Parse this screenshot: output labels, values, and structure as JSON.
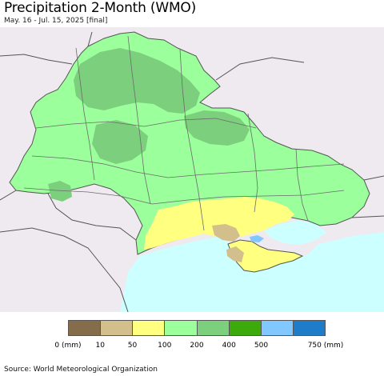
{
  "header": {
    "title": "Precipitation 2-Month (WMO)",
    "subtitle": "May. 16 - Jul. 15, 2025 [final]"
  },
  "map": {
    "background_color": "#efeaf0",
    "sea_color": "#ccffff",
    "border_color": "#555555",
    "oblast_border_color": "#6b6b6b"
  },
  "legend": {
    "colors": [
      "#856c4b",
      "#d2bf8c",
      "#ffff80",
      "#9bff9b",
      "#7ccf7c",
      "#3caa0a",
      "#80c8ff",
      "#1e7cc8"
    ],
    "labels": [
      "0 (mm)",
      "10",
      "50",
      "100",
      "200",
      "400",
      "500",
      "750 (mm)"
    ]
  },
  "footer": {
    "source": "Source: World Meteorological Organization"
  }
}
